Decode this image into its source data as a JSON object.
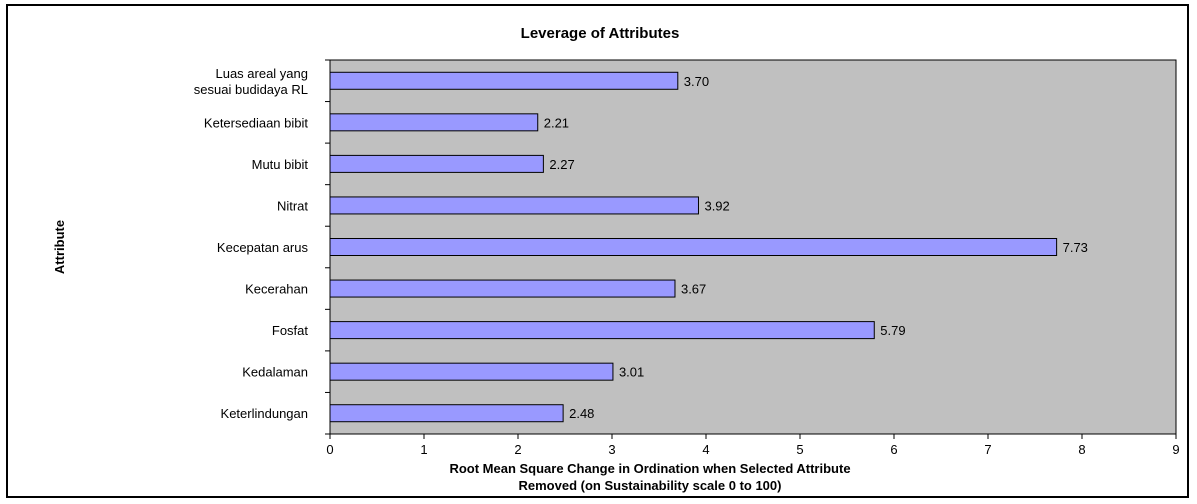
{
  "chart_data": {
    "type": "bar",
    "orientation": "horizontal",
    "title": "Leverage of Attributes",
    "ylabel": "Attribute",
    "xlabel_lines": [
      "Root Mean Square Change in Ordination when Selected Attribute",
      "Removed (on Sustainability scale 0 to 100)"
    ],
    "categories": [
      [
        "Luas areal yang",
        "sesuai budidaya RL"
      ],
      [
        "Ketersediaan bibit"
      ],
      [
        "Mutu bibit"
      ],
      [
        "Nitrat"
      ],
      [
        "Kecepatan arus"
      ],
      [
        "Kecerahan"
      ],
      [
        "Fosfat"
      ],
      [
        "Kedalaman"
      ],
      [
        "Keterlindungan"
      ]
    ],
    "values": [
      3.7,
      2.21,
      2.27,
      3.92,
      7.73,
      3.67,
      5.79,
      3.01,
      2.48
    ],
    "value_labels": [
      "3.70",
      "2.21",
      "2.27",
      "3.92",
      "7.73",
      "3.67",
      "5.79",
      "3.01",
      "2.48"
    ],
    "xlim": [
      0,
      9
    ],
    "xticks": [
      "0",
      "1",
      "2",
      "3",
      "4",
      "5",
      "6",
      "7",
      "8",
      "9"
    ],
    "grid": false,
    "colors": {
      "bar_fill": "#9999ff",
      "bar_stroke": "#000000",
      "plot_bg": "#c0c0c0"
    }
  }
}
